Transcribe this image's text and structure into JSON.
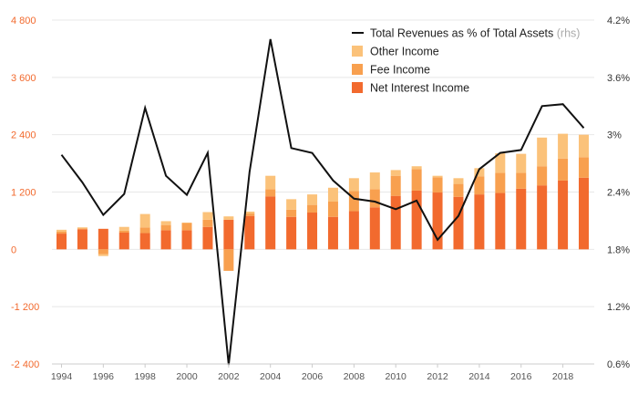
{
  "chart_data": {
    "type": "bar",
    "title": "",
    "xlabel": "",
    "ylabel": "",
    "years": [
      1994,
      1995,
      1996,
      1997,
      1998,
      1999,
      2000,
      2001,
      2002,
      2003,
      2004,
      2005,
      2006,
      2007,
      2008,
      2009,
      2010,
      2011,
      2012,
      2013,
      2014,
      2015,
      2016,
      2017,
      2018,
      2019
    ],
    "x_tick_labels": [
      "1994",
      "1996",
      "1998",
      "2000",
      "2002",
      "2004",
      "2006",
      "2008",
      "2010",
      "2012",
      "2014",
      "2016",
      "2018"
    ],
    "ylim_left": [
      -2400,
      4800
    ],
    "left_tick_labels": [
      "4 800",
      "3 600",
      "2 400",
      "1 200",
      "0",
      "-1 200",
      "-2 400"
    ],
    "left_tick_values": [
      4800,
      3600,
      2400,
      1200,
      0,
      -1200,
      -2400
    ],
    "ylim_right": [
      0.6,
      4.2
    ],
    "right_tick_labels": [
      "4.2%",
      "3.6%",
      "3%",
      "2.4%",
      "1.8%",
      "1.2%",
      "0.6%"
    ],
    "right_tick_values": [
      4.2,
      3.6,
      3.0,
      2.4,
      1.8,
      1.2,
      0.6
    ],
    "series": [
      {
        "name": "Net Interest Income",
        "kind": "bar",
        "color": "#f26a2e",
        "values": [
          330,
          420,
          430,
          350,
          340,
          400,
          400,
          470,
          620,
          700,
          1110,
          680,
          770,
          680,
          800,
          880,
          1120,
          1230,
          1190,
          1100,
          1150,
          1180,
          1270,
          1340,
          1440,
          1500
        ]
      },
      {
        "name": "Fee Income",
        "kind": "bar",
        "color": "#f8a04f",
        "values": [
          40,
          20,
          -100,
          40,
          120,
          110,
          150,
          150,
          -450,
          50,
          150,
          150,
          160,
          320,
          420,
          380,
          420,
          450,
          320,
          270,
          380,
          420,
          330,
          400,
          460,
          430
        ]
      },
      {
        "name": "Other Income",
        "kind": "bar",
        "color": "#fbc27a",
        "values": [
          40,
          20,
          -40,
          80,
          280,
          80,
          10,
          160,
          70,
          40,
          280,
          220,
          220,
          290,
          270,
          350,
          120,
          60,
          30,
          120,
          170,
          410,
          400,
          600,
          520,
          470
        ]
      },
      {
        "name": "Total Revenues as % of Total Assets",
        "kind": "line",
        "axis": "right",
        "color": "#111111",
        "values": [
          2.79,
          2.5,
          2.16,
          2.38,
          3.28,
          2.57,
          2.37,
          2.81,
          0.59,
          2.61,
          4.0,
          2.86,
          2.81,
          2.52,
          2.33,
          2.3,
          2.22,
          2.31,
          1.9,
          2.15,
          2.64,
          2.81,
          2.84,
          3.3,
          3.32,
          3.07
        ]
      }
    ],
    "legend": [
      {
        "label": "Total Revenues as % of Total Assets",
        "suffix": "(rhs)",
        "type": "line",
        "color": "#111111"
      },
      {
        "label": "Other Income",
        "type": "box",
        "color": "#fbc27a"
      },
      {
        "label": "Fee Income",
        "type": "box",
        "color": "#f8a04f"
      },
      {
        "label": "Net Interest Income",
        "type": "box",
        "color": "#f26a2e"
      }
    ],
    "legend_position": "top-right",
    "grid": true
  }
}
